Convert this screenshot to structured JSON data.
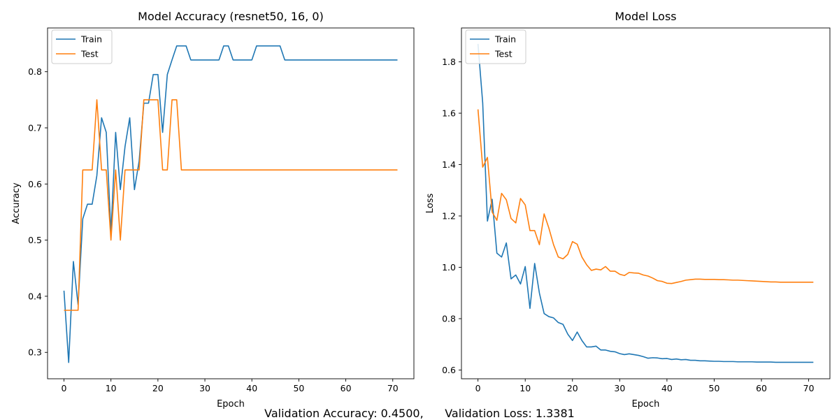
{
  "footer": {
    "validation_accuracy": "Validation Accuracy: 0.4500,",
    "validation_loss": "Validation Loss: 1.3381"
  },
  "chart_data": [
    {
      "type": "line",
      "title": "Model Accuracy (resnet50, 16, 0)",
      "xlabel": "Epoch",
      "ylabel": "Accuracy",
      "xlim": [
        -3.5,
        74.5
      ],
      "ylim": [
        0.253,
        0.878
      ],
      "xticks": [
        0,
        10,
        20,
        30,
        40,
        50,
        60,
        70
      ],
      "yticks": [
        0.3,
        0.4,
        0.5,
        0.6,
        0.7,
        0.8
      ],
      "ytick_labels": [
        "0.3",
        "0.4",
        "0.5",
        "0.6",
        "0.7",
        "0.8"
      ],
      "legend": "upper left",
      "grid": false,
      "series": [
        {
          "name": "Train",
          "color": "#1f77b4",
          "values": [
            0.41,
            0.282,
            0.462,
            0.385,
            0.538,
            0.564,
            0.564,
            0.615,
            0.718,
            0.692,
            0.513,
            0.692,
            0.59,
            0.667,
            0.718,
            0.59,
            0.641,
            0.744,
            0.744,
            0.795,
            0.795,
            0.692,
            0.795,
            0.821,
            0.846,
            0.846,
            0.846,
            0.821,
            0.821,
            0.821,
            0.821,
            0.821,
            0.821,
            0.821,
            0.846,
            0.846,
            0.821,
            0.821,
            0.821,
            0.821,
            0.821,
            0.846,
            0.846,
            0.846,
            0.846,
            0.846,
            0.846,
            0.821,
            0.821,
            0.821,
            0.821,
            0.821,
            0.821,
            0.821,
            0.821,
            0.821,
            0.821,
            0.821,
            0.821,
            0.821,
            0.821,
            0.821,
            0.821,
            0.821,
            0.821,
            0.821,
            0.821,
            0.821,
            0.821,
            0.821,
            0.821,
            0.821
          ]
        },
        {
          "name": "Test",
          "color": "#ff7f0e",
          "values": [
            0.375,
            0.375,
            0.375,
            0.375,
            0.625,
            0.625,
            0.625,
            0.75,
            0.625,
            0.625,
            0.5,
            0.625,
            0.5,
            0.625,
            0.625,
            0.625,
            0.625,
            0.75,
            0.75,
            0.75,
            0.75,
            0.625,
            0.625,
            0.75,
            0.75,
            0.625,
            0.625,
            0.625,
            0.625,
            0.625,
            0.625,
            0.625,
            0.625,
            0.625,
            0.625,
            0.625,
            0.625,
            0.625,
            0.625,
            0.625,
            0.625,
            0.625,
            0.625,
            0.625,
            0.625,
            0.625,
            0.625,
            0.625,
            0.625,
            0.625,
            0.625,
            0.625,
            0.625,
            0.625,
            0.625,
            0.625,
            0.625,
            0.625,
            0.625,
            0.625,
            0.625,
            0.625,
            0.625,
            0.625,
            0.625,
            0.625,
            0.625,
            0.625,
            0.625,
            0.625,
            0.625,
            0.625
          ]
        }
      ]
    },
    {
      "type": "line",
      "title": "Model Loss",
      "xlabel": "Epoch",
      "ylabel": "Loss",
      "xlim": [
        -3.5,
        74.5
      ],
      "ylim": [
        0.566,
        1.932
      ],
      "xticks": [
        0,
        10,
        20,
        30,
        40,
        50,
        60,
        70
      ],
      "yticks": [
        0.6,
        0.8,
        1.0,
        1.2,
        1.4,
        1.6,
        1.8
      ],
      "ytick_labels": [
        "0.6",
        "0.8",
        "1.0",
        "1.2",
        "1.4",
        "1.6",
        "1.8"
      ],
      "legend": "upper left",
      "grid": false,
      "series": [
        {
          "name": "Train",
          "color": "#1f77b4",
          "values": [
            1.87,
            1.64,
            1.18,
            1.265,
            1.055,
            1.04,
            1.095,
            0.955,
            0.97,
            0.935,
            1.003,
            0.84,
            1.015,
            0.9,
            0.82,
            0.808,
            0.803,
            0.785,
            0.778,
            0.74,
            0.715,
            0.748,
            0.715,
            0.69,
            0.69,
            0.693,
            0.678,
            0.678,
            0.673,
            0.671,
            0.664,
            0.66,
            0.663,
            0.66,
            0.657,
            0.652,
            0.646,
            0.648,
            0.647,
            0.644,
            0.645,
            0.641,
            0.643,
            0.64,
            0.641,
            0.638,
            0.638,
            0.636,
            0.636,
            0.635,
            0.634,
            0.634,
            0.633,
            0.633,
            0.633,
            0.632,
            0.632,
            0.632,
            0.632,
            0.631,
            0.631,
            0.631,
            0.631,
            0.63,
            0.63,
            0.63,
            0.63,
            0.63,
            0.63,
            0.63,
            0.63,
            0.63
          ]
        },
        {
          "name": "Test",
          "color": "#ff7f0e",
          "values": [
            1.615,
            1.39,
            1.428,
            1.215,
            1.183,
            1.288,
            1.263,
            1.19,
            1.173,
            1.268,
            1.243,
            1.143,
            1.143,
            1.088,
            1.208,
            1.153,
            1.088,
            1.04,
            1.033,
            1.05,
            1.1,
            1.09,
            1.04,
            1.01,
            0.988,
            0.993,
            0.99,
            1.003,
            0.985,
            0.985,
            0.973,
            0.968,
            0.98,
            0.978,
            0.977,
            0.97,
            0.966,
            0.958,
            0.948,
            0.945,
            0.938,
            0.937,
            0.941,
            0.945,
            0.95,
            0.952,
            0.954,
            0.954,
            0.953,
            0.953,
            0.953,
            0.952,
            0.952,
            0.951,
            0.95,
            0.95,
            0.949,
            0.948,
            0.947,
            0.946,
            0.945,
            0.944,
            0.943,
            0.943,
            0.942,
            0.942,
            0.942,
            0.942,
            0.942,
            0.942,
            0.942,
            0.942
          ]
        }
      ]
    }
  ]
}
